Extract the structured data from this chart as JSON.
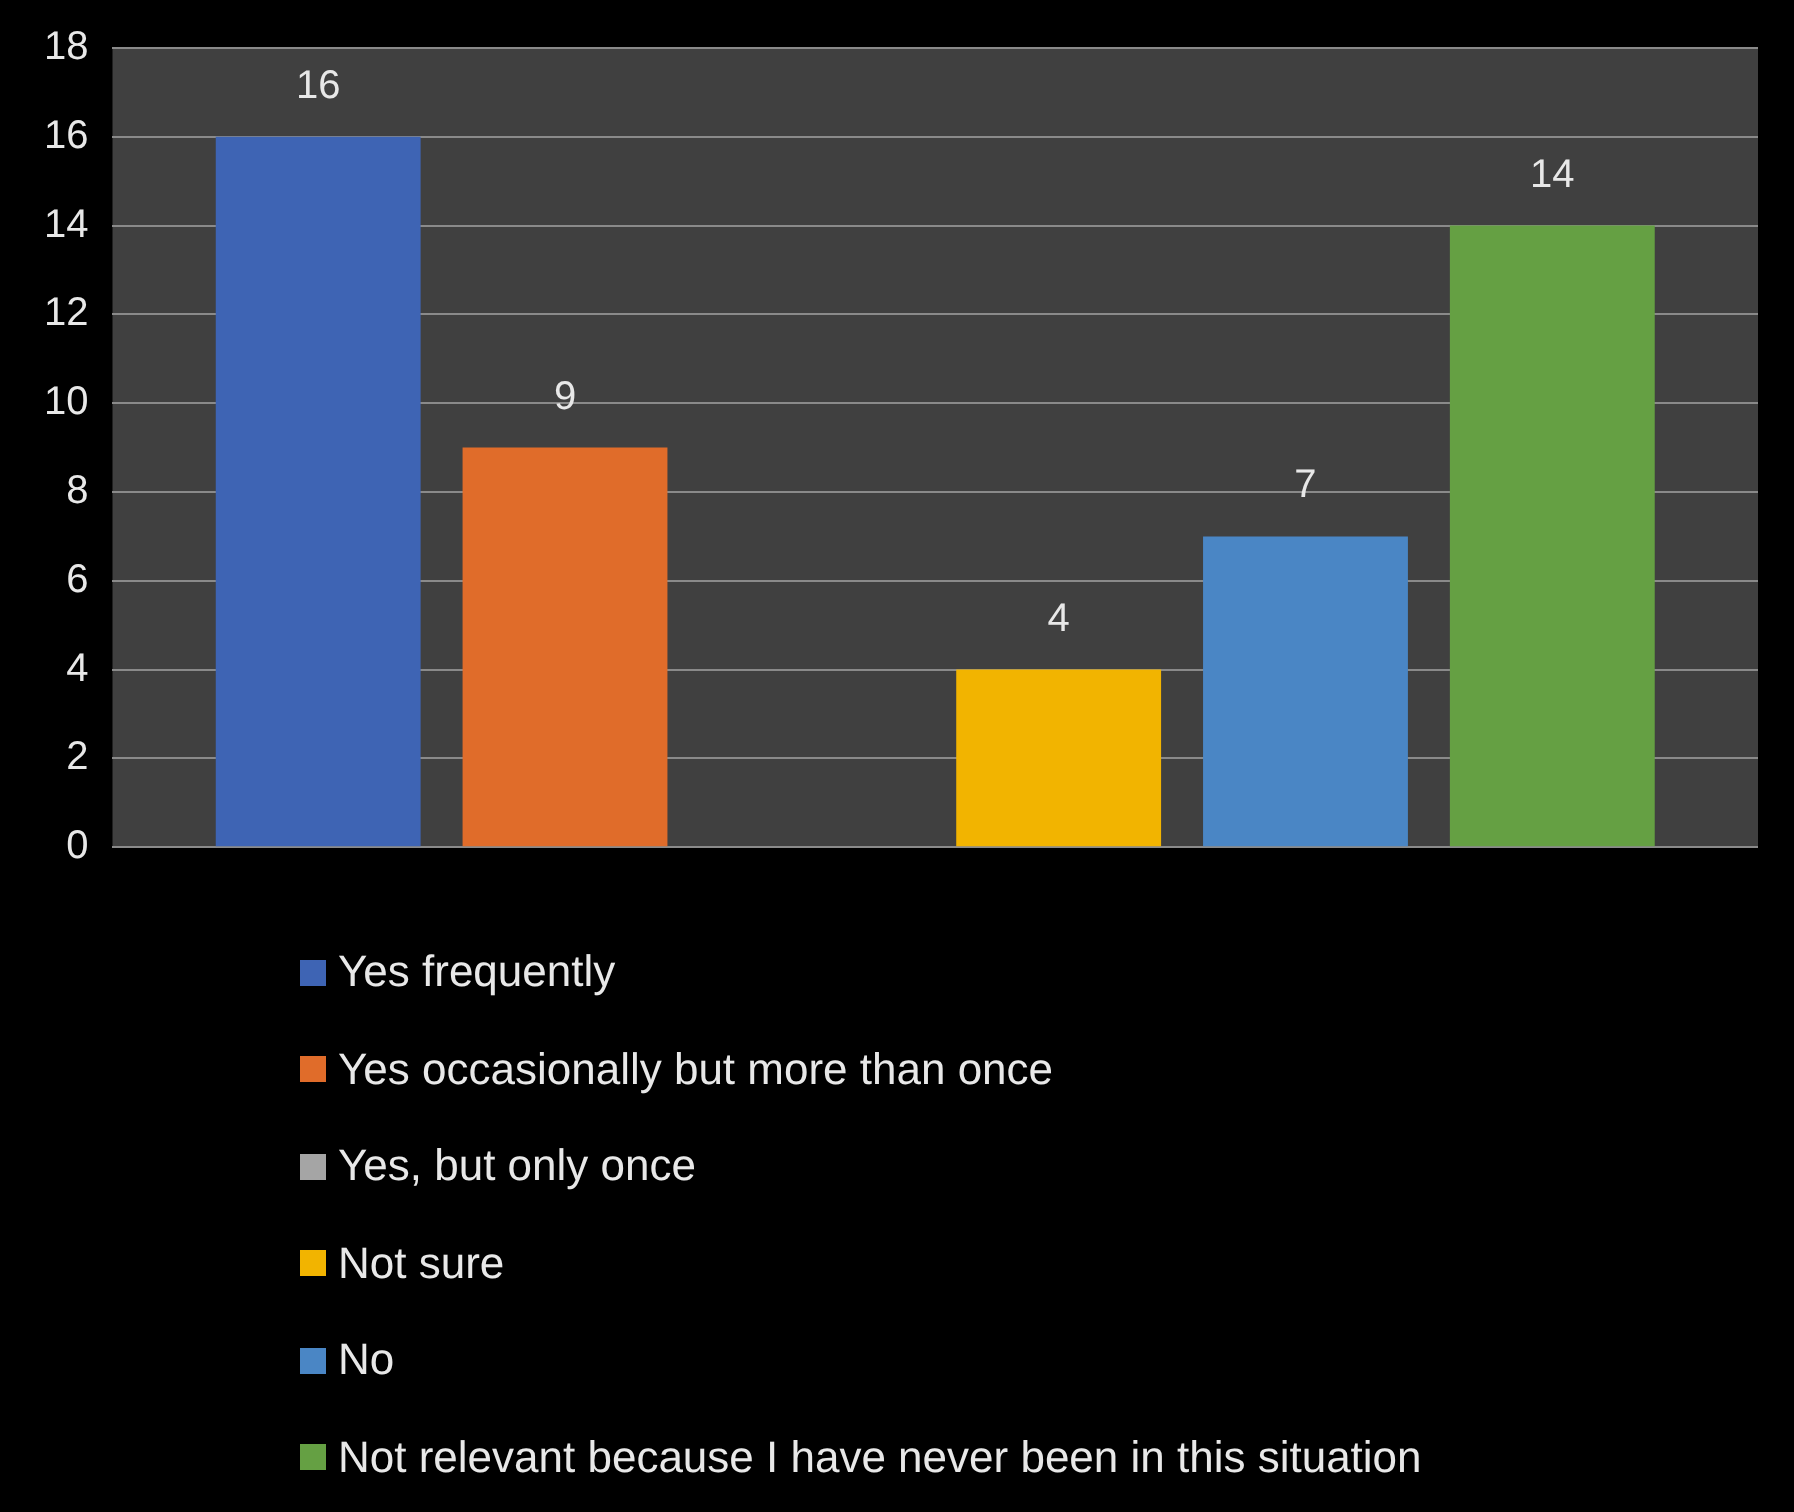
{
  "chart_data": {
    "type": "bar",
    "categories": [
      null
    ],
    "series": [
      {
        "name": "Yes frequently",
        "color": "#3e64b4",
        "values": [
          16
        ],
        "value_labels": [
          "16"
        ]
      },
      {
        "name": "Yes occasionally but more than once",
        "color": "#e06c2a",
        "values": [
          9
        ],
        "value_labels": [
          "9"
        ]
      },
      {
        "name": "Yes, but only once",
        "color": "#a5a5a5",
        "values": [
          0
        ],
        "value_labels": [
          null
        ]
      },
      {
        "name": "Not sure",
        "color": "#f2b400",
        "values": [
          4
        ],
        "value_labels": [
          "4"
        ]
      },
      {
        "name": "No",
        "color": "#4a86c5",
        "values": [
          7
        ],
        "value_labels": [
          "7"
        ]
      },
      {
        "name": "Not relevant because I have never been in this situation",
        "color": "#65a043",
        "values": [
          14
        ],
        "value_labels": [
          "14"
        ]
      }
    ],
    "ylim": [
      0,
      18
    ],
    "yticks": [
      0,
      2,
      4,
      6,
      8,
      10,
      12,
      14,
      16,
      18
    ],
    "grid": "y",
    "legend": "bottom"
  }
}
